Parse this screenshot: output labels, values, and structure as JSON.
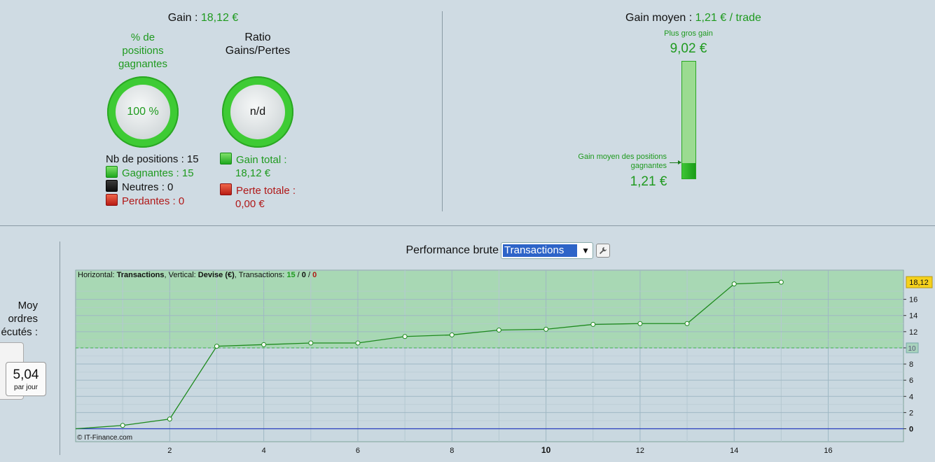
{
  "summary": {
    "gain_label": "Gain : ",
    "gain_value": "18,12 €",
    "winning_pct_title_1": "% de",
    "winning_pct_title_2": "positions",
    "winning_pct_title_3": "gagnantes",
    "winning_pct_value": "100 %",
    "ratio_title_1": "Ratio",
    "ratio_title_2": "Gains/Pertes",
    "ratio_value": "n/d",
    "nb_positions": "Nb de positions : 15",
    "winners": "Gagnantes : 15",
    "neutrals": "Neutres : 0",
    "losers": "Perdantes : 0",
    "total_gain_1": "Gain total :",
    "total_gain_2": "18,12 €",
    "total_loss_1": "Perte totale :",
    "total_loss_2": "0,00 €"
  },
  "average": {
    "label": "Gain moyen : ",
    "value": "1,21 € / trade",
    "biggest_label": "Plus gros gain",
    "biggest_value": "9,02 €",
    "avg_win_label_1": "Gain moyen des positions",
    "avg_win_label_2": "gagnantes",
    "avg_win_value": "1,21 €",
    "avg_fraction_of_max": 0.134
  },
  "left_panel": {
    "line1": "Moy",
    "line2": "ordres",
    "line3": "écutés :",
    "value": "5,04",
    "unit": "par jour"
  },
  "performance": {
    "title": "Performance brute",
    "selected": "Transactions",
    "wrench_icon": "wrench-icon"
  },
  "chart_data": {
    "type": "line",
    "info_prefix": "Horizontal: ",
    "info_h": "Transactions",
    "info_mid": ", Vertical: ",
    "info_v": "Devise (€)",
    "info_tx": ", Transactions: ",
    "info_n1": "15",
    "info_sep1": " / ",
    "info_n2": "0",
    "info_sep2": " / ",
    "info_n3": "0",
    "copyright": "© IT-Finance.com",
    "x": [
      0,
      1,
      2,
      3,
      4,
      5,
      6,
      7,
      8,
      9,
      10,
      11,
      12,
      13,
      14,
      15
    ],
    "values": [
      0,
      0.41,
      1.2,
      10.2,
      10.4,
      10.6,
      10.6,
      11.4,
      11.6,
      12.2,
      12.3,
      12.9,
      13.0,
      13.0,
      17.9,
      18.12
    ],
    "xlim": [
      0,
      17.6
    ],
    "ylim": [
      -1.6,
      19.6
    ],
    "x_ticks": [
      "2",
      "4",
      "6",
      "8",
      "10",
      "12",
      "14",
      "16"
    ],
    "y_ticks": [
      "0",
      "2",
      "4",
      "6",
      "8",
      "10",
      "12",
      "14",
      "16"
    ],
    "last_value_label": "18,12",
    "threshold_value": 10,
    "threshold_label": "10",
    "colors": {
      "line": "#1e8a1e",
      "green_zone": "#a8d8b4",
      "plot_bg": "#c9d8e0",
      "zero_line": "#2b3fbf",
      "badge": "#f6d21c"
    }
  }
}
